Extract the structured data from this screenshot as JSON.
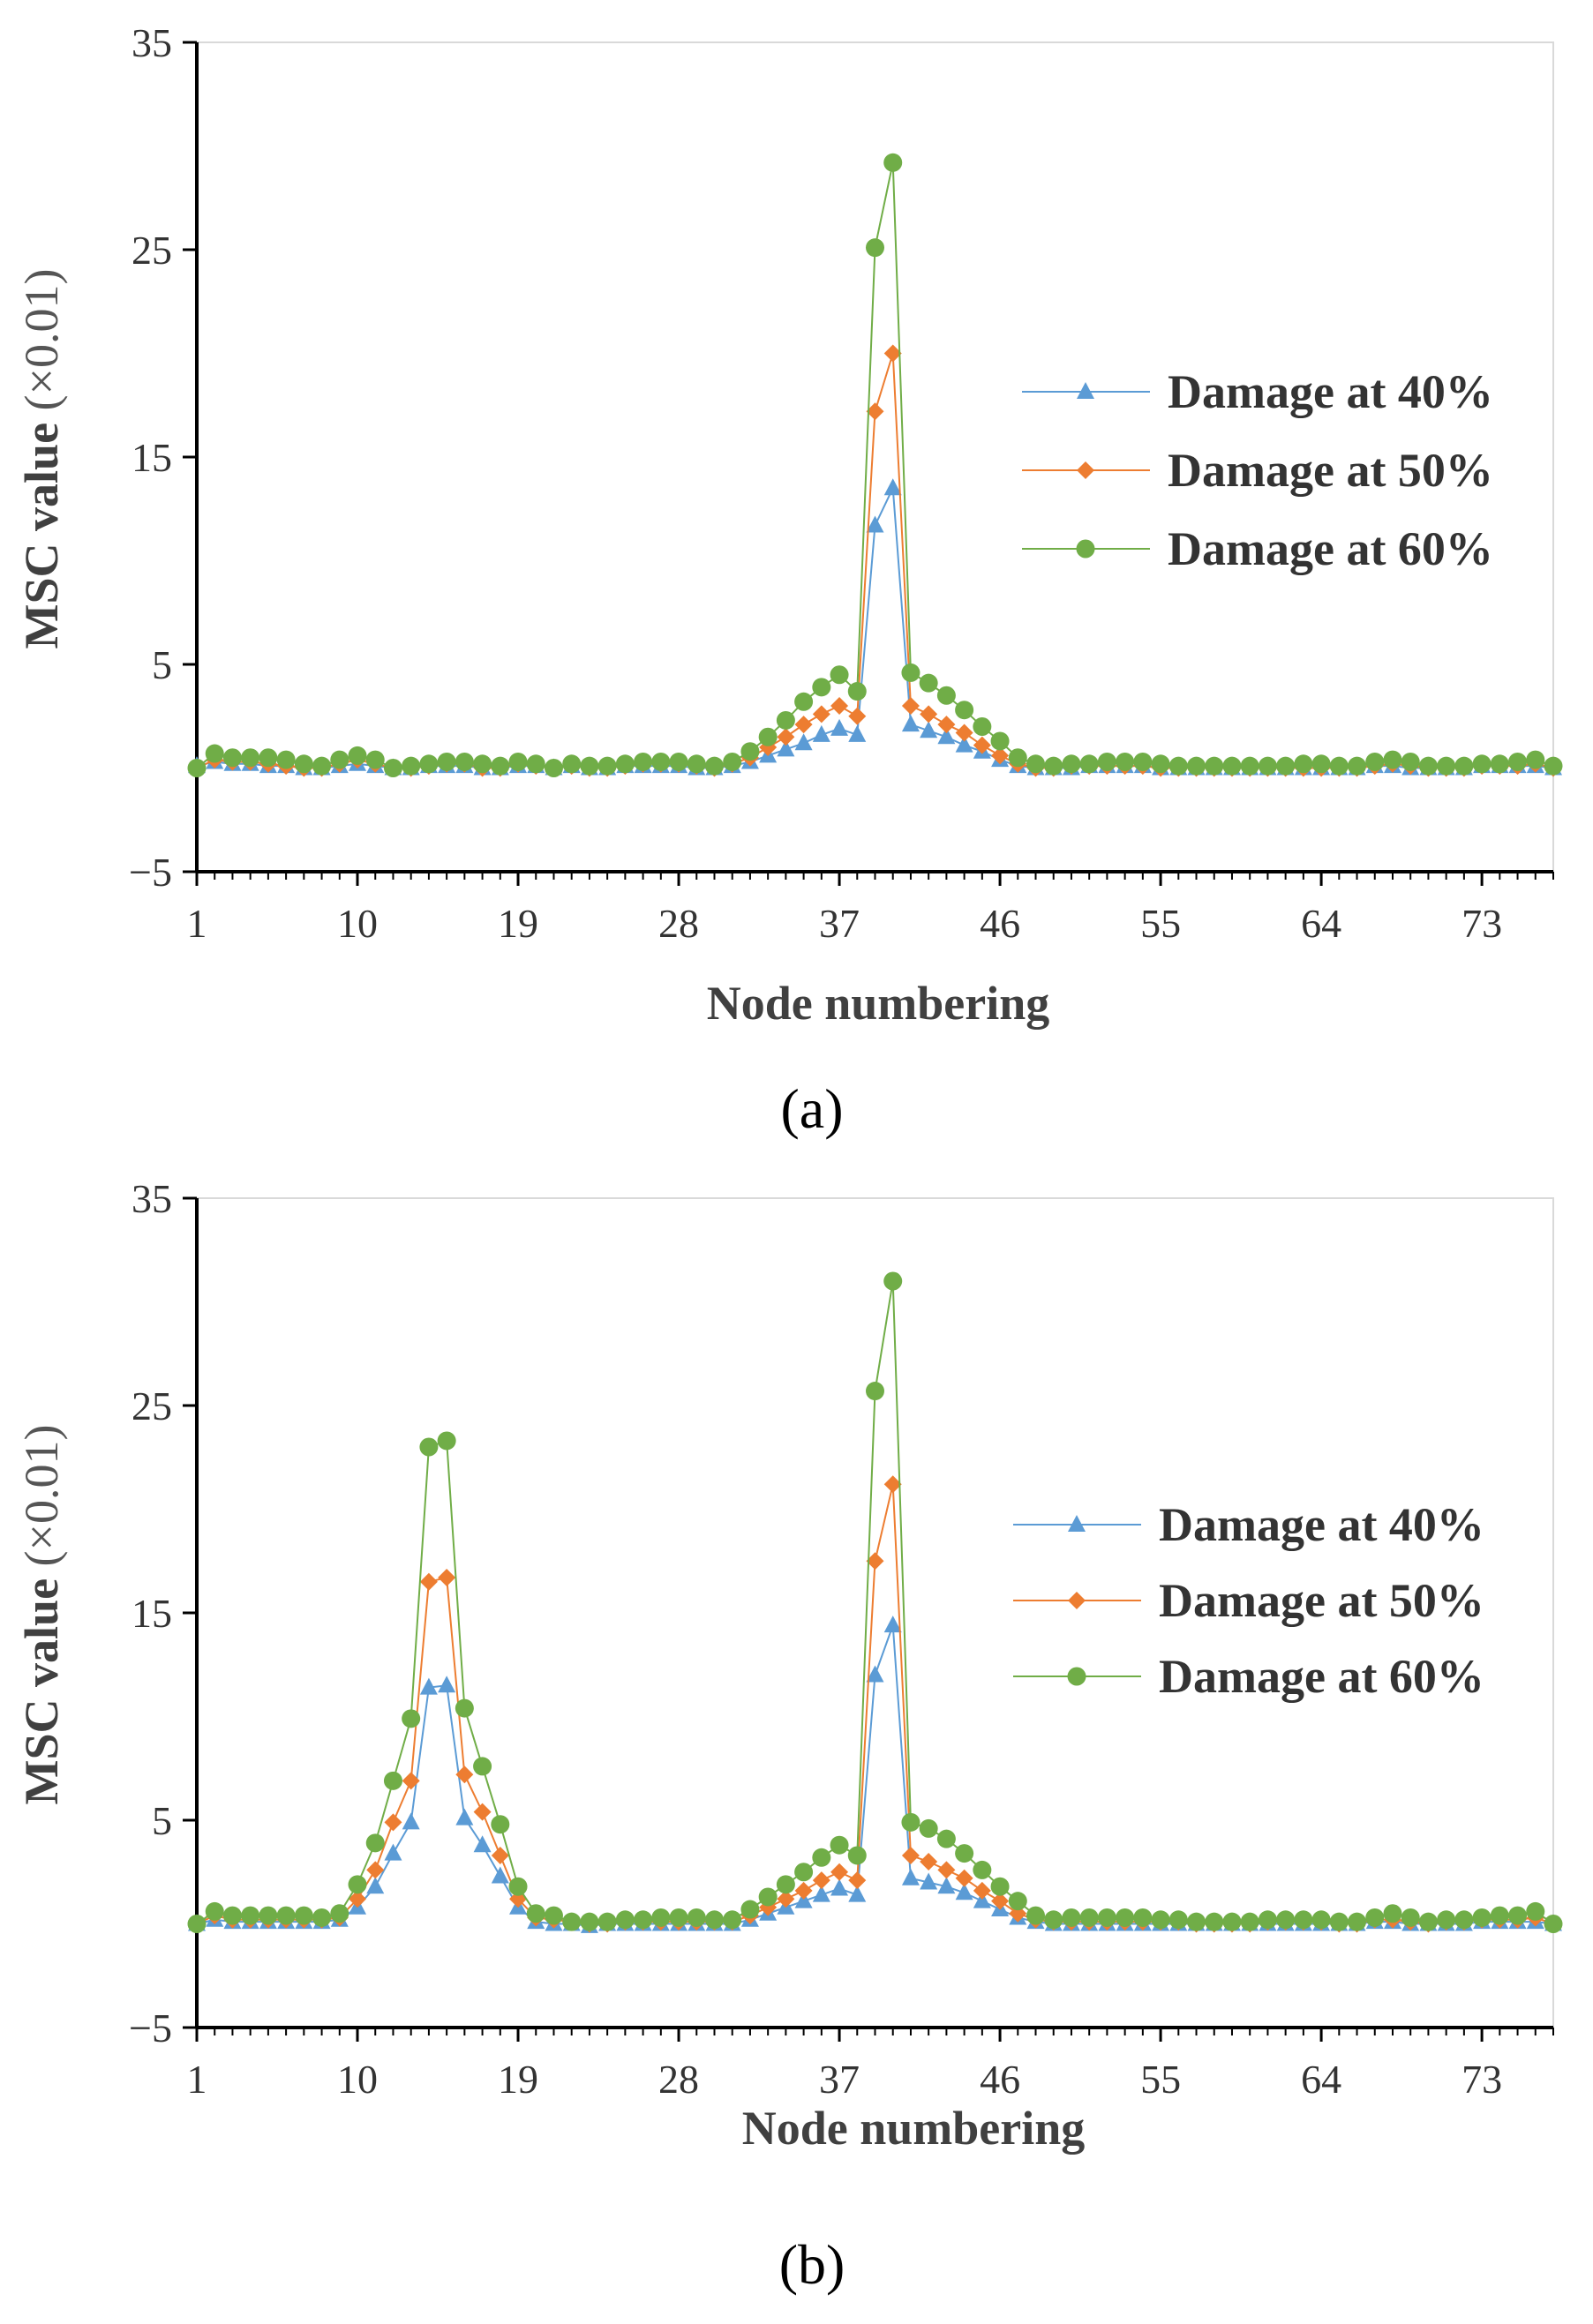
{
  "colors": {
    "s40": "#5B9BD5",
    "s50": "#ED7D31",
    "s60": "#70AD47"
  },
  "chart_data": [
    {
      "type": "line",
      "caption": "(a)",
      "xlabel": "Node numbering",
      "ylabel": "MSC value",
      "ylabel_unit": "(×0.01)",
      "xlim": [
        1,
        77
      ],
      "ylim": [
        -5,
        35
      ],
      "xticks": [
        "1",
        "10",
        "19",
        "28",
        "37",
        "46",
        "55",
        "64",
        "73"
      ],
      "yticks": [
        "35",
        "25",
        "15",
        "5",
        "−5"
      ],
      "legend_position": "right",
      "series": [
        {
          "name": "Damage at 40%",
          "marker": "triangle",
          "color": "#5B9BD5",
          "values": [
            0.1,
            0.3,
            0.2,
            0.2,
            0.1,
            0.1,
            0.0,
            0.0,
            0.1,
            0.2,
            0.1,
            0.0,
            0.0,
            0.1,
            0.1,
            0.1,
            0.0,
            0.0,
            0.1,
            0.1,
            0.0,
            0.1,
            0.0,
            0.0,
            0.1,
            0.1,
            0.1,
            0.1,
            0.0,
            0.0,
            0.1,
            0.3,
            0.6,
            0.9,
            1.2,
            1.6,
            1.9,
            1.6,
            11.7,
            13.5,
            2.1,
            1.8,
            1.5,
            1.1,
            0.8,
            0.4,
            0.1,
            0.0,
            0.0,
            0.0,
            0.1,
            0.1,
            0.1,
            0.1,
            0.0,
            0.0,
            0.0,
            0.0,
            0.0,
            0.0,
            0.0,
            0.0,
            0.0,
            0.0,
            0.0,
            0.0,
            0.1,
            0.1,
            0.0,
            0.0,
            0.0,
            0.0,
            0.1,
            0.1,
            0.1,
            0.1,
            0.0
          ]
        },
        {
          "name": "Damage at 50%",
          "marker": "diamond",
          "color": "#ED7D31",
          "values": [
            0.0,
            0.4,
            0.3,
            0.3,
            0.2,
            0.1,
            0.0,
            0.0,
            0.2,
            0.4,
            0.2,
            0.0,
            0.0,
            0.1,
            0.2,
            0.2,
            0.0,
            0.0,
            0.2,
            0.1,
            0.0,
            0.1,
            0.0,
            0.0,
            0.1,
            0.2,
            0.2,
            0.2,
            0.1,
            0.0,
            0.2,
            0.5,
            1.0,
            1.5,
            2.1,
            2.6,
            3.0,
            2.5,
            17.2,
            20.0,
            3.0,
            2.6,
            2.1,
            1.7,
            1.1,
            0.6,
            0.2,
            0.0,
            0.0,
            0.1,
            0.1,
            0.1,
            0.1,
            0.1,
            0.0,
            0.0,
            0.0,
            0.0,
            0.0,
            0.0,
            0.0,
            0.0,
            0.0,
            0.0,
            0.0,
            0.0,
            0.1,
            0.2,
            0.1,
            0.0,
            0.0,
            0.0,
            0.1,
            0.1,
            0.1,
            0.2,
            0.0
          ]
        },
        {
          "name": "Damage at 60%",
          "marker": "circle",
          "color": "#70AD47",
          "values": [
            0.0,
            0.7,
            0.5,
            0.5,
            0.5,
            0.4,
            0.2,
            0.1,
            0.4,
            0.6,
            0.4,
            0.0,
            0.1,
            0.2,
            0.3,
            0.3,
            0.2,
            0.1,
            0.3,
            0.2,
            0.0,
            0.2,
            0.1,
            0.1,
            0.2,
            0.3,
            0.3,
            0.3,
            0.2,
            0.1,
            0.3,
            0.8,
            1.5,
            2.3,
            3.2,
            3.9,
            4.5,
            3.7,
            25.1,
            29.2,
            4.6,
            4.1,
            3.5,
            2.8,
            2.0,
            1.3,
            0.5,
            0.2,
            0.1,
            0.2,
            0.2,
            0.3,
            0.3,
            0.3,
            0.2,
            0.1,
            0.1,
            0.1,
            0.1,
            0.1,
            0.1,
            0.1,
            0.2,
            0.2,
            0.1,
            0.1,
            0.3,
            0.4,
            0.3,
            0.1,
            0.1,
            0.1,
            0.2,
            0.2,
            0.3,
            0.4,
            0.1
          ]
        }
      ]
    },
    {
      "type": "line",
      "caption": "(b)",
      "xlabel": "Node numbering",
      "ylabel": "MSC  value",
      "ylabel_unit": "(×0.01)",
      "xlim": [
        1,
        77
      ],
      "ylim": [
        -5,
        35
      ],
      "xticks": [
        "1",
        "10",
        "19",
        "28",
        "37",
        "46",
        "55",
        "64",
        "73"
      ],
      "yticks": [
        "35",
        "25",
        "15",
        "5",
        "−5"
      ],
      "legend_position": "right",
      "series": [
        {
          "name": "Damage at 40%",
          "marker": "triangle",
          "color": "#5B9BD5",
          "values": [
            0.0,
            0.2,
            0.1,
            0.1,
            0.1,
            0.1,
            0.1,
            0.1,
            0.2,
            0.8,
            1.8,
            3.4,
            4.9,
            11.4,
            11.5,
            5.1,
            3.8,
            2.3,
            0.8,
            0.1,
            0.0,
            0.0,
            -0.1,
            0.0,
            0.0,
            0.0,
            0.0,
            0.0,
            0.0,
            0.0,
            0.0,
            0.2,
            0.5,
            0.8,
            1.1,
            1.4,
            1.7,
            1.4,
            12.0,
            14.4,
            2.2,
            2.0,
            1.8,
            1.5,
            1.1,
            0.7,
            0.3,
            0.1,
            0.0,
            0.0,
            0.0,
            0.0,
            0.0,
            0.0,
            0.0,
            0.0,
            0.0,
            0.0,
            0.0,
            0.0,
            0.0,
            0.0,
            0.0,
            0.0,
            0.0,
            0.0,
            0.1,
            0.1,
            0.0,
            0.0,
            0.0,
            0.0,
            0.1,
            0.1,
            0.1,
            0.1,
            0.0
          ]
        },
        {
          "name": "Damage at 50%",
          "marker": "diamond",
          "color": "#ED7D31",
          "values": [
            0.0,
            0.4,
            0.2,
            0.2,
            0.2,
            0.2,
            0.2,
            0.2,
            0.3,
            1.2,
            2.6,
            4.9,
            6.9,
            16.5,
            16.7,
            7.2,
            5.4,
            3.3,
            1.2,
            0.3,
            0.2,
            0.1,
            0.0,
            0.0,
            0.1,
            0.1,
            0.1,
            0.1,
            0.1,
            0.1,
            0.1,
            0.4,
            0.8,
            1.2,
            1.6,
            2.1,
            2.5,
            2.1,
            17.5,
            21.2,
            3.3,
            3.0,
            2.6,
            2.2,
            1.6,
            1.1,
            0.5,
            0.2,
            0.1,
            0.1,
            0.1,
            0.1,
            0.1,
            0.1,
            0.1,
            0.1,
            0.0,
            0.0,
            0.0,
            0.0,
            0.1,
            0.1,
            0.1,
            0.1,
            0.0,
            0.0,
            0.2,
            0.2,
            0.1,
            0.0,
            0.1,
            0.1,
            0.2,
            0.2,
            0.2,
            0.3,
            0.0
          ]
        },
        {
          "name": "Damage at 60%",
          "marker": "circle",
          "color": "#70AD47",
          "values": [
            0.0,
            0.6,
            0.4,
            0.4,
            0.4,
            0.4,
            0.4,
            0.3,
            0.5,
            1.9,
            3.9,
            6.9,
            9.9,
            23.0,
            23.3,
            10.4,
            7.6,
            4.8,
            1.8,
            0.5,
            0.4,
            0.1,
            0.1,
            0.1,
            0.2,
            0.2,
            0.3,
            0.3,
            0.3,
            0.2,
            0.2,
            0.7,
            1.3,
            1.9,
            2.5,
            3.2,
            3.8,
            3.3,
            25.7,
            31.0,
            4.9,
            4.6,
            4.1,
            3.4,
            2.6,
            1.8,
            1.1,
            0.4,
            0.2,
            0.3,
            0.3,
            0.3,
            0.3,
            0.3,
            0.2,
            0.2,
            0.1,
            0.1,
            0.1,
            0.1,
            0.2,
            0.2,
            0.2,
            0.2,
            0.1,
            0.1,
            0.3,
            0.5,
            0.3,
            0.1,
            0.2,
            0.2,
            0.3,
            0.4,
            0.4,
            0.6,
            0.0
          ]
        }
      ]
    }
  ]
}
